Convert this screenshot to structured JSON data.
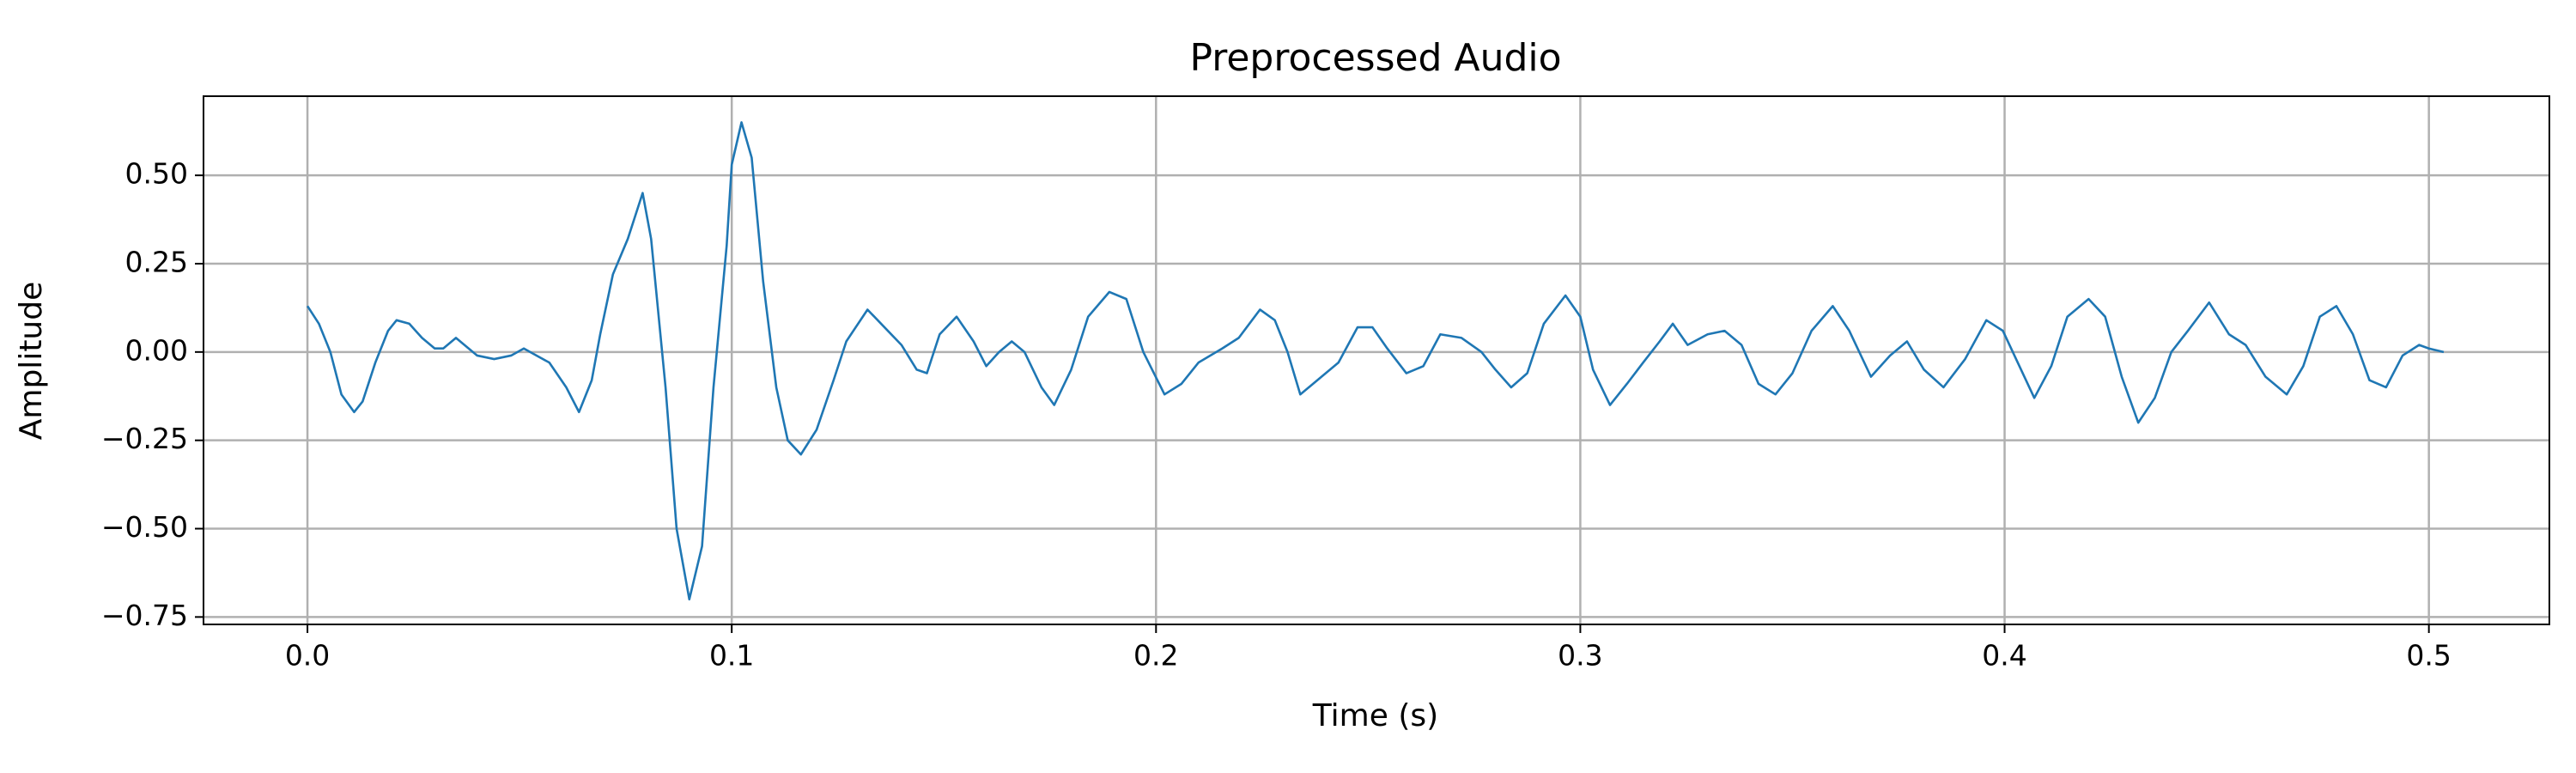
{
  "chart_data": {
    "type": "line",
    "title": "Preprocessed Audio",
    "xlabel": "Time (s)",
    "ylabel": "Amplitude",
    "color": "#1f77b4",
    "grid": true,
    "xlim": [
      -0.0245,
      0.5284
    ],
    "ylim": [
      -0.771,
      0.724
    ],
    "xticks": [
      {
        "value": 0,
        "label": "0.0"
      },
      0.1,
      0.2,
      0.3,
      0.4,
      0.5
    ],
    "yticks": [
      {
        "value": -0.75,
        "label": "−0.75"
      },
      {
        "value": -0.5,
        "label": "−0.50"
      },
      {
        "value": -0.25,
        "label": "−0.25"
      },
      {
        "value": 0,
        "label": "0.00"
      },
      {
        "value": 0.25,
        "label": "0.25"
      },
      {
        "value": 0.5,
        "label": "0.50"
      }
    ],
    "x": [
      0,
      0.0027,
      0.0054,
      0.008,
      0.011,
      0.013,
      0.016,
      0.019,
      0.021,
      0.024,
      0.027,
      0.03,
      0.032,
      0.035,
      0.037,
      0.04,
      0.044,
      0.048,
      0.051,
      0.054,
      0.057,
      0.061,
      0.064,
      0.067,
      0.069,
      0.072,
      0.0755,
      0.079,
      0.081,
      0.0844,
      0.087,
      0.09,
      0.093,
      0.0957,
      0.0988,
      0.1,
      0.1023,
      0.1047,
      0.1074,
      0.1105,
      0.1132,
      0.1163,
      0.12,
      0.124,
      0.127,
      0.132,
      0.136,
      0.14,
      0.1436,
      0.146,
      0.149,
      0.153,
      0.157,
      0.16,
      0.163,
      0.166,
      0.169,
      0.173,
      0.176,
      0.18,
      0.184,
      0.189,
      0.193,
      0.197,
      0.202,
      0.206,
      0.21,
      0.2156,
      0.2195,
      0.2245,
      0.228,
      0.231,
      0.234,
      0.239,
      0.243,
      0.2475,
      0.251,
      0.2545,
      0.259,
      0.263,
      0.267,
      0.272,
      0.2767,
      0.28,
      0.2837,
      0.2875,
      0.2914,
      0.2965,
      0.3,
      0.303,
      0.307,
      0.311,
      0.3148,
      0.3187,
      0.3218,
      0.3253,
      0.33,
      0.334,
      0.338,
      0.342,
      0.346,
      0.35,
      0.3545,
      0.3595,
      0.3634,
      0.3685,
      0.373,
      0.377,
      0.381,
      0.3856,
      0.3907,
      0.3957,
      0.3996,
      0.4031,
      0.407,
      0.411,
      0.4148,
      0.4198,
      0.4237,
      0.4276,
      0.4315,
      0.4354,
      0.4393,
      0.4432,
      0.4482,
      0.4529,
      0.4568,
      0.4615,
      0.4665,
      0.4704,
      0.4743,
      0.4782,
      0.4821,
      0.486,
      0.4899,
      0.4938,
      0.4977,
      0.5,
      0.5035
    ],
    "values": [
      0.13,
      0.08,
      0,
      -0.12,
      -0.17,
      -0.14,
      -0.03,
      0.06,
      0.09,
      0.08,
      0.04,
      0.01,
      0.01,
      0.04,
      0.02,
      -0.01,
      -0.02,
      -0.01,
      0.01,
      -0.01,
      -0.03,
      -0.1,
      -0.17,
      -0.08,
      0.05,
      0.22,
      0.32,
      0.45,
      0.32,
      -0.1,
      -0.5,
      -0.7,
      -0.55,
      -0.1,
      0.3,
      0.53,
      0.65,
      0.55,
      0.2,
      -0.1,
      -0.25,
      -0.29,
      -0.22,
      -0.08,
      0.03,
      0.12,
      0.07,
      0.02,
      -0.05,
      -0.06,
      0.05,
      0.1,
      0.03,
      -0.04,
      0,
      0.03,
      0,
      -0.1,
      -0.15,
      -0.05,
      0.1,
      0.17,
      0.15,
      0,
      -0.12,
      -0.09,
      -0.03,
      0.01,
      0.04,
      0.12,
      0.09,
      0,
      -0.12,
      -0.07,
      -0.03,
      0.07,
      0.07,
      0.01,
      -0.06,
      -0.04,
      0.05,
      0.04,
      0,
      -0.05,
      -0.1,
      -0.06,
      0.08,
      0.16,
      0.1,
      -0.05,
      -0.15,
      -0.09,
      -0.03,
      0.03,
      0.08,
      0.02,
      0.05,
      0.06,
      0.02,
      -0.09,
      -0.12,
      -0.06,
      0.06,
      0.13,
      0.06,
      -0.07,
      -0.01,
      0.03,
      -0.05,
      -0.1,
      -0.02,
      0.09,
      0.06,
      -0.03,
      -0.13,
      -0.04,
      0.1,
      0.15,
      0.1,
      -0.07,
      -0.2,
      -0.13,
      0,
      0.06,
      0.14,
      0.05,
      0.02,
      -0.07,
      -0.12,
      -0.04,
      0.1,
      0.13,
      0.05,
      -0.08,
      -0.1,
      -0.01,
      0.02,
      0.01,
      0
    ]
  }
}
